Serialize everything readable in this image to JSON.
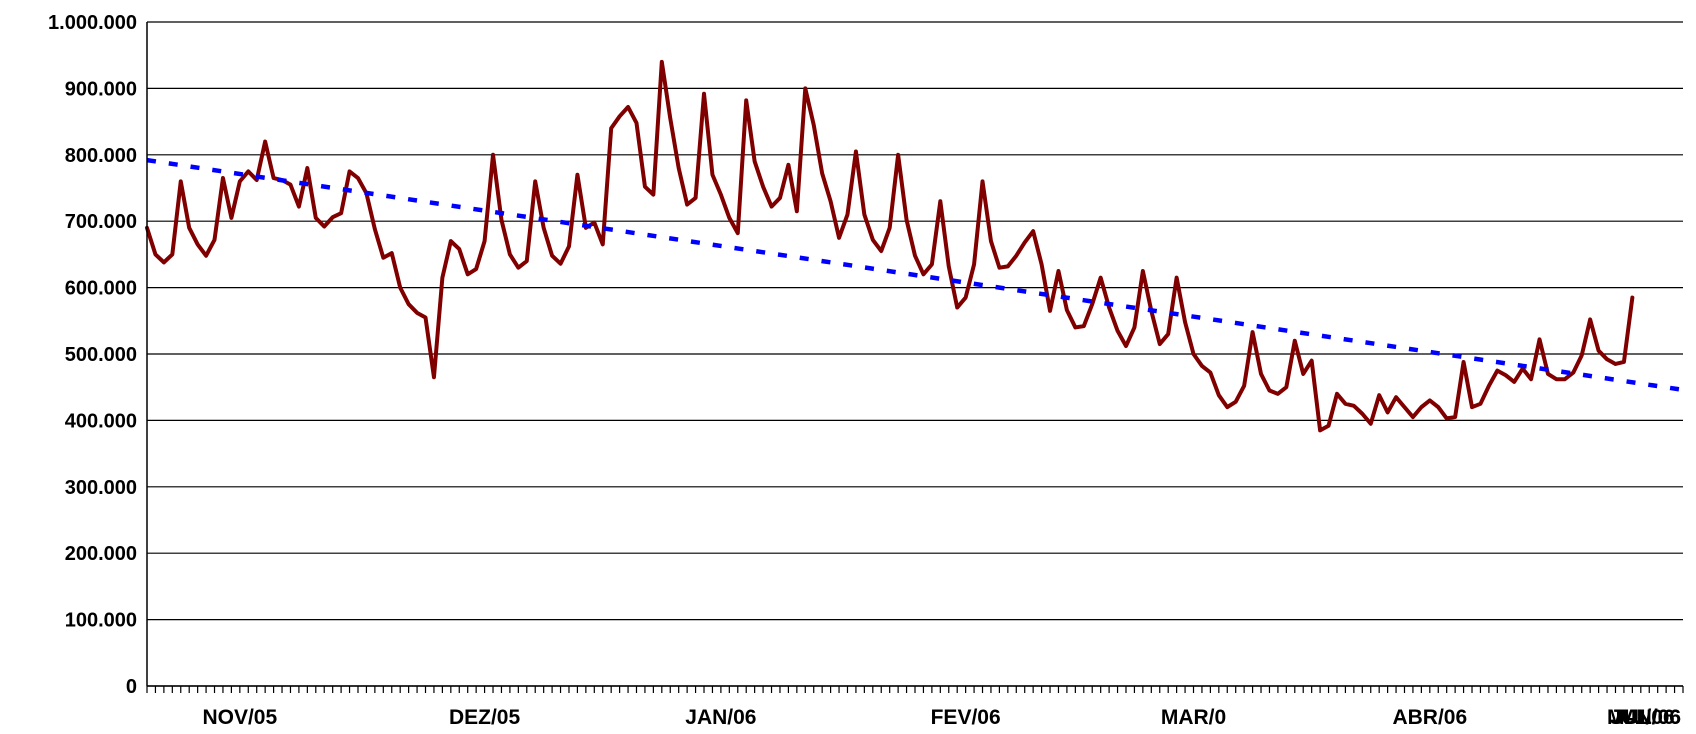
{
  "chart_data": {
    "type": "line",
    "title": "",
    "xlabel": "",
    "ylabel": "",
    "ylim": [
      0,
      1000000
    ],
    "y_ticks": [
      {
        "value": 0,
        "label": "0"
      },
      {
        "value": 100000,
        "label": "100.000"
      },
      {
        "value": 200000,
        "label": "200.000"
      },
      {
        "value": 300000,
        "label": "300.000"
      },
      {
        "value": 400000,
        "label": "400.000"
      },
      {
        "value": 500000,
        "label": "500.000"
      },
      {
        "value": 600000,
        "label": "600.000"
      },
      {
        "value": 700000,
        "label": "700.000"
      },
      {
        "value": 800000,
        "label": "800.000"
      },
      {
        "value": 900000,
        "label": "900.000"
      },
      {
        "value": 1000000,
        "label": "1.000.000"
      }
    ],
    "grid": true,
    "legend": "none",
    "x_range": [
      0,
      182
    ],
    "minor_tick_count": 182,
    "categories": [
      {
        "label": "NOV/05",
        "x": 11
      },
      {
        "label": "DEZ/05",
        "x": 40
      },
      {
        "label": "JAN/06",
        "x": 68
      },
      {
        "label": "FEV/06",
        "x": 97
      },
      {
        "label": "MAR/0",
        "x": 124
      },
      {
        "label": "ABR/06",
        "x": 152
      },
      {
        "label": "MAI/06",
        "x": 177
      },
      {
        "label": "JUN/06",
        "x": 202
      },
      {
        "label": "JUL/06",
        "x": 225
      }
    ],
    "series": [
      {
        "color": "#800000",
        "style": "solid",
        "points": [
          [
            0,
            690000
          ],
          [
            1,
            650000
          ],
          [
            2,
            638000
          ],
          [
            3,
            650000
          ],
          [
            4,
            760000
          ],
          [
            5,
            690000
          ],
          [
            6,
            665000
          ],
          [
            7,
            648000
          ],
          [
            8,
            672000
          ],
          [
            9,
            765000
          ],
          [
            10,
            705000
          ],
          [
            11,
            760000
          ],
          [
            12,
            775000
          ],
          [
            13,
            762000
          ],
          [
            14,
            820000
          ],
          [
            15,
            765000
          ],
          [
            16,
            762000
          ],
          [
            17,
            755000
          ],
          [
            18,
            722000
          ],
          [
            19,
            780000
          ],
          [
            20,
            705000
          ],
          [
            21,
            692000
          ],
          [
            22,
            706000
          ],
          [
            23,
            712000
          ],
          [
            24,
            775000
          ],
          [
            25,
            765000
          ],
          [
            26,
            742000
          ],
          [
            27,
            688000
          ],
          [
            28,
            645000
          ],
          [
            29,
            652000
          ],
          [
            30,
            600000
          ],
          [
            31,
            575000
          ],
          [
            32,
            562000
          ],
          [
            33,
            555000
          ],
          [
            34,
            465000
          ],
          [
            35,
            615000
          ],
          [
            36,
            670000
          ],
          [
            37,
            658000
          ],
          [
            38,
            620000
          ],
          [
            39,
            628000
          ],
          [
            40,
            670000
          ],
          [
            41,
            800000
          ],
          [
            42,
            702000
          ],
          [
            43,
            650000
          ],
          [
            44,
            630000
          ],
          [
            45,
            640000
          ],
          [
            46,
            760000
          ],
          [
            47,
            690000
          ],
          [
            48,
            648000
          ],
          [
            49,
            636000
          ],
          [
            50,
            662000
          ],
          [
            51,
            770000
          ],
          [
            52,
            690000
          ],
          [
            53,
            698000
          ],
          [
            54,
            665000
          ],
          [
            55,
            840000
          ],
          [
            56,
            858000
          ],
          [
            57,
            872000
          ],
          [
            58,
            848000
          ],
          [
            59,
            752000
          ],
          [
            60,
            740000
          ],
          [
            61,
            940000
          ],
          [
            62,
            855000
          ],
          [
            63,
            780000
          ],
          [
            64,
            725000
          ],
          [
            65,
            735000
          ],
          [
            66,
            892000
          ],
          [
            67,
            770000
          ],
          [
            68,
            740000
          ],
          [
            69,
            705000
          ],
          [
            70,
            682000
          ],
          [
            71,
            882000
          ],
          [
            72,
            790000
          ],
          [
            73,
            752000
          ],
          [
            74,
            722000
          ],
          [
            75,
            735000
          ],
          [
            76,
            785000
          ],
          [
            77,
            715000
          ],
          [
            78,
            900000
          ],
          [
            79,
            845000
          ],
          [
            80,
            772000
          ],
          [
            81,
            730000
          ],
          [
            82,
            675000
          ],
          [
            83,
            710000
          ],
          [
            84,
            805000
          ],
          [
            85,
            710000
          ],
          [
            86,
            672000
          ],
          [
            87,
            655000
          ],
          [
            88,
            690000
          ],
          [
            89,
            800000
          ],
          [
            90,
            702000
          ],
          [
            91,
            648000
          ],
          [
            92,
            620000
          ],
          [
            93,
            635000
          ],
          [
            94,
            730000
          ],
          [
            95,
            632000
          ],
          [
            96,
            570000
          ],
          [
            97,
            585000
          ],
          [
            98,
            635000
          ],
          [
            99,
            760000
          ],
          [
            100,
            670000
          ],
          [
            101,
            630000
          ],
          [
            102,
            632000
          ],
          [
            103,
            648000
          ],
          [
            104,
            668000
          ],
          [
            105,
            685000
          ],
          [
            106,
            635000
          ],
          [
            107,
            565000
          ],
          [
            108,
            625000
          ],
          [
            109,
            566000
          ],
          [
            110,
            540000
          ],
          [
            111,
            542000
          ],
          [
            112,
            575000
          ],
          [
            113,
            615000
          ],
          [
            114,
            570000
          ],
          [
            115,
            535000
          ],
          [
            116,
            512000
          ],
          [
            117,
            540000
          ],
          [
            118,
            625000
          ],
          [
            119,
            565000
          ],
          [
            120,
            515000
          ],
          [
            121,
            530000
          ],
          [
            122,
            615000
          ],
          [
            123,
            548000
          ],
          [
            124,
            500000
          ],
          [
            125,
            482000
          ],
          [
            126,
            472000
          ],
          [
            127,
            438000
          ],
          [
            128,
            420000
          ],
          [
            129,
            428000
          ],
          [
            130,
            452000
          ],
          [
            131,
            533000
          ],
          [
            132,
            470000
          ],
          [
            133,
            445000
          ],
          [
            134,
            440000
          ],
          [
            135,
            450000
          ],
          [
            136,
            520000
          ],
          [
            137,
            470000
          ],
          [
            138,
            490000
          ],
          [
            139,
            385000
          ],
          [
            140,
            392000
          ],
          [
            141,
            440000
          ],
          [
            142,
            425000
          ],
          [
            143,
            422000
          ],
          [
            144,
            410000
          ],
          [
            145,
            395000
          ],
          [
            146,
            438000
          ],
          [
            147,
            412000
          ],
          [
            148,
            435000
          ],
          [
            149,
            420000
          ],
          [
            150,
            405000
          ],
          [
            151,
            420000
          ],
          [
            152,
            430000
          ],
          [
            153,
            420000
          ],
          [
            154,
            403000
          ],
          [
            155,
            405000
          ],
          [
            156,
            488000
          ],
          [
            157,
            420000
          ],
          [
            158,
            425000
          ],
          [
            159,
            452000
          ],
          [
            160,
            475000
          ],
          [
            161,
            468000
          ],
          [
            162,
            458000
          ],
          [
            163,
            478000
          ],
          [
            164,
            462000
          ],
          [
            165,
            522000
          ],
          [
            166,
            470000
          ],
          [
            167,
            462000
          ],
          [
            168,
            462000
          ],
          [
            169,
            472000
          ],
          [
            170,
            498000
          ],
          [
            171,
            552000
          ],
          [
            172,
            505000
          ],
          [
            173,
            492000
          ],
          [
            174,
            485000
          ],
          [
            175,
            488000
          ],
          [
            176,
            585000
          ]
        ]
      },
      {
        "color": "#0000ff",
        "style": "dashed",
        "trend": true,
        "points": [
          [
            0,
            792000
          ],
          [
            182,
            446000
          ]
        ]
      }
    ]
  }
}
